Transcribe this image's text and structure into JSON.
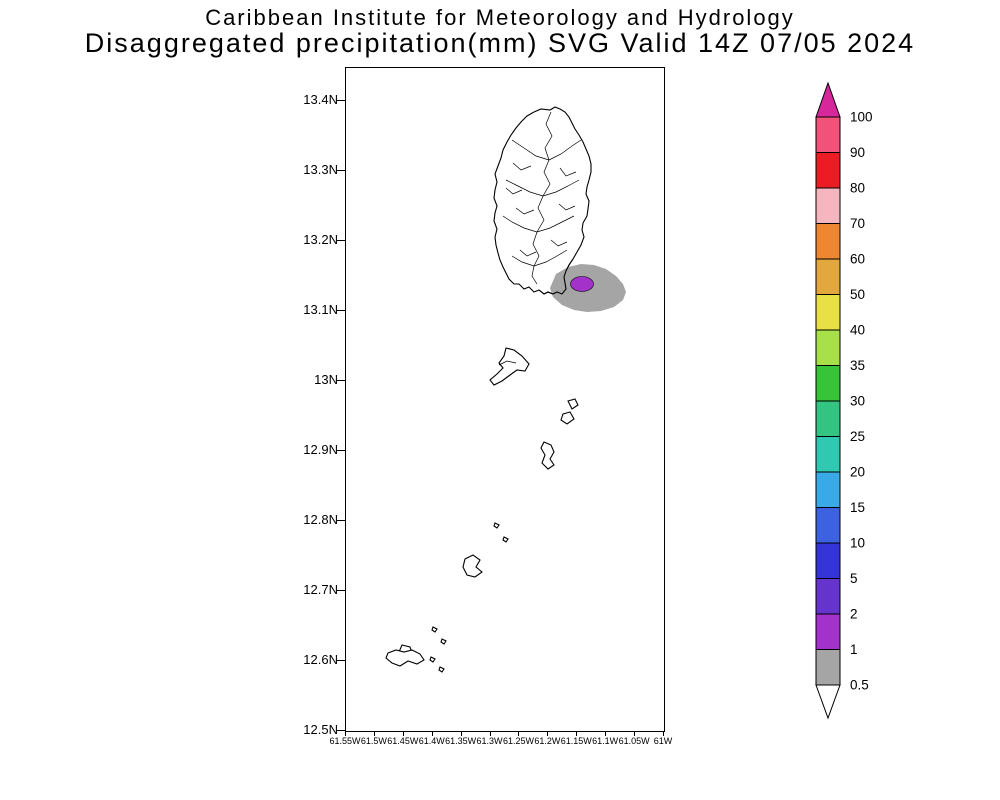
{
  "header": {
    "line1": "Caribbean Institute for Meteorology and Hydrology",
    "line2": "Disaggregated precipitation(mm) SVG Valid 14Z 07/05 2024"
  },
  "map": {
    "lat_labels": [
      "13.4N",
      "13.3N",
      "13.2N",
      "13.1N",
      "13N",
      "12.9N",
      "12.8N",
      "12.7N",
      "12.6N",
      "12.5N"
    ],
    "lon_labels": [
      "61.55W",
      "61.5W",
      "61.45W",
      "61.4W",
      "61.35W",
      "61.3W",
      "61.25W",
      "61.2W",
      "61.15W",
      "61.1W",
      "61.05W",
      "61W"
    ],
    "precip_regions": [
      {
        "name": "rain-area-gray",
        "value_range_mm": "0.5-1",
        "color": "#a5a5a5"
      },
      {
        "name": "rain-area-purple",
        "value_range_mm": "1-2",
        "color": "#a232ca"
      }
    ]
  },
  "colorbar": {
    "tick_labels": [
      "100",
      "90",
      "80",
      "70",
      "60",
      "50",
      "40",
      "35",
      "30",
      "25",
      "20",
      "15",
      "10",
      "5",
      "2",
      "1",
      "0.5"
    ],
    "segment_colors_top_to_bottom": [
      "#f2527a",
      "#ec1c24",
      "#f6b6c0",
      "#ef8632",
      "#e2a83e",
      "#e8e044",
      "#a8e04a",
      "#38c438",
      "#34c482",
      "#30c8b0",
      "#3aaae6",
      "#3c62e2",
      "#3434d8",
      "#6434cc",
      "#a232ca",
      "#a5a5a5"
    ],
    "over_color": "#d6289b",
    "under_color": "#ffffff"
  },
  "chart_data": {
    "type": "heatmap",
    "title": "Disaggregated precipitation(mm) SVG Valid 14Z 07/05 2024",
    "subtitle": "Caribbean Institute for Meteorology and Hydrology",
    "valid": "14Z 07/05 2024",
    "units": "mm",
    "x_tick_labels": [
      "61.55W",
      "61.5W",
      "61.45W",
      "61.4W",
      "61.35W",
      "61.3W",
      "61.25W",
      "61.2W",
      "61.15W",
      "61.1W",
      "61.05W",
      "61W"
    ],
    "y_tick_labels": [
      "13.4N",
      "13.3N",
      "13.2N",
      "13.1N",
      "13N",
      "12.9N",
      "12.8N",
      "12.7N",
      "12.6N",
      "12.5N"
    ],
    "xlim": [
      "61.55W",
      "61W"
    ],
    "ylim": [
      "12.5N",
      "13.4N"
    ],
    "levels": [
      0.5,
      1,
      2,
      5,
      10,
      15,
      20,
      25,
      30,
      35,
      40,
      50,
      60,
      70,
      80,
      90,
      100
    ],
    "level_colors_low_to_high": [
      "#a5a5a5",
      "#a232ca",
      "#6434cc",
      "#3434d8",
      "#3c62e2",
      "#3aaae6",
      "#30c8b0",
      "#34c482",
      "#38c438",
      "#a8e04a",
      "#e8e044",
      "#e2a83e",
      "#ef8632",
      "#f6b6c0",
      "#ec1c24",
      "#f2527a",
      "#d6289b"
    ],
    "legend_position": "right",
    "grid": false,
    "data_points": [
      {
        "value_range_mm": "0.5-1",
        "approx_extent": "13.10N-13.17N, 61.07W-61.20W",
        "note": "gray shaded area off the southeast coast of the main island"
      },
      {
        "value_range_mm": "1-2",
        "approx_extent": "13.13N-13.15N, 61.13W-61.16W",
        "note": "small purple core inside the gray area"
      }
    ]
  }
}
